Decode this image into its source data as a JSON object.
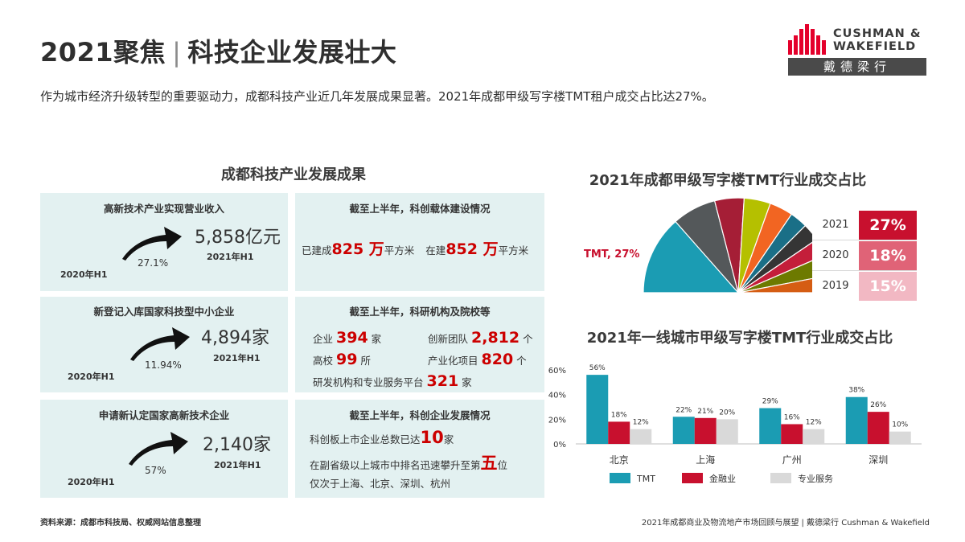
{
  "header": {
    "title_left": "2021聚焦",
    "title_sep": "|",
    "title_right": "科技企业发展壮大",
    "intro": "作为城市经济升级转型的重要驱动力，成都科技产业近几年发展成果显著。2021年成都甲级写字楼TMT租户成交占比达27%。"
  },
  "logo": {
    "line1": "CUSHMAN &",
    "line2": "WAKEFIELD",
    "cn": "戴德梁行",
    "color": "#e4002b"
  },
  "section_title": "成都科技产业发展成果",
  "kpis": [
    {
      "title": "高新技术产业实现营业收入",
      "value": "5,858亿元",
      "growth": "27.1%",
      "from": "2020年H1",
      "to": "2021年H1"
    },
    {
      "title": "新登记入库国家科技型中小企业",
      "value": "4,894家",
      "growth": "11.94%",
      "from": "2020年H1",
      "to": "2021年H1"
    },
    {
      "title": "申请新认定国家高新技术企业",
      "value": "2,140家",
      "growth": "57%",
      "from": "2020年H1",
      "to": "2021年H1"
    }
  ],
  "info1": {
    "title": "截至上半年，科创载体建设情况",
    "built_label": "已建成",
    "built_value": "825 万",
    "built_unit": "平方米",
    "building_label": "在建",
    "building_value": "852 万",
    "building_unit": "平方米"
  },
  "info2": {
    "title": "截至上半年，科研机构及院校等",
    "r1_label": "企业",
    "r1_value": "394",
    "r1_unit": "家",
    "r2_label": "创新团队",
    "r2_value": "2,812",
    "r2_unit": "个",
    "r3_label": "高校",
    "r3_value": "99",
    "r3_unit": "所",
    "r4_label": "产业化项目",
    "r4_value": "820",
    "r4_unit": "个",
    "r5_label": "研发机构和专业服务平台",
    "r5_value": "321",
    "r5_unit": "家"
  },
  "info3": {
    "title": "截至上半年，科创企业发展情况",
    "l1_text": "科创板上市企业总数已达",
    "l1_value": "10",
    "l1_unit": "家",
    "l2_text": "在副省级以上城市中排名迅速攀升至第",
    "l2_value": "五",
    "l2_unit": "位",
    "l3_text": "仅次于上海、北京、深圳、杭州"
  },
  "chart_data": [
    {
      "type": "pie",
      "title": "2021年成都甲级写字楼TMT行业成交占比",
      "annotation": "TMT, 27%",
      "slices": [
        {
          "label": "TMT",
          "value": 27,
          "color": "#1b9cb3"
        },
        {
          "value": 15,
          "color": "#54585a"
        },
        {
          "value": 10,
          "color": "#a51e36"
        },
        {
          "value": 9,
          "color": "#b5c000"
        },
        {
          "value": 8,
          "color": "#f26522"
        },
        {
          "value": 6,
          "color": "#1a6f87"
        },
        {
          "value": 6,
          "color": "#353535"
        },
        {
          "value": 6,
          "color": "#c41e3a"
        },
        {
          "value": 7,
          "color": "#6d7a00"
        },
        {
          "value": 6,
          "color": "#d55d13"
        }
      ],
      "note": "semicircle",
      "year_table": [
        {
          "year": "2021",
          "value": "27%",
          "color": "#c8102e"
        },
        {
          "year": "2020",
          "value": "18%",
          "color": "#e06377"
        },
        {
          "year": "2019",
          "value": "15%",
          "color": "#f2b8c3"
        }
      ]
    },
    {
      "type": "bar",
      "title": "2021年一线城市甲级写字楼TMT行业成交占比",
      "categories": [
        "北京",
        "上海",
        "广州",
        "深圳"
      ],
      "series": [
        {
          "name": "TMT",
          "values": [
            56,
            22,
            29,
            38
          ],
          "color": "#1b9cb3"
        },
        {
          "name": "金融业",
          "values": [
            18,
            21,
            16,
            26
          ],
          "color": "#c8102e"
        },
        {
          "name": "专业服务",
          "values": [
            12,
            20,
            12,
            10
          ],
          "color": "#d9d9d9"
        }
      ],
      "value_suffix": "%",
      "ylim": [
        0,
        60
      ],
      "yticks": [
        "0%",
        "20%",
        "40%",
        "60%"
      ],
      "legend": "bottom"
    }
  ],
  "footer": {
    "source": "资料来源：成都市科技局、权威网站信息整理",
    "right": "2021年成都商业及物流地产市场回顾与展望 | 戴德梁行 Cushman & Wakefield"
  }
}
